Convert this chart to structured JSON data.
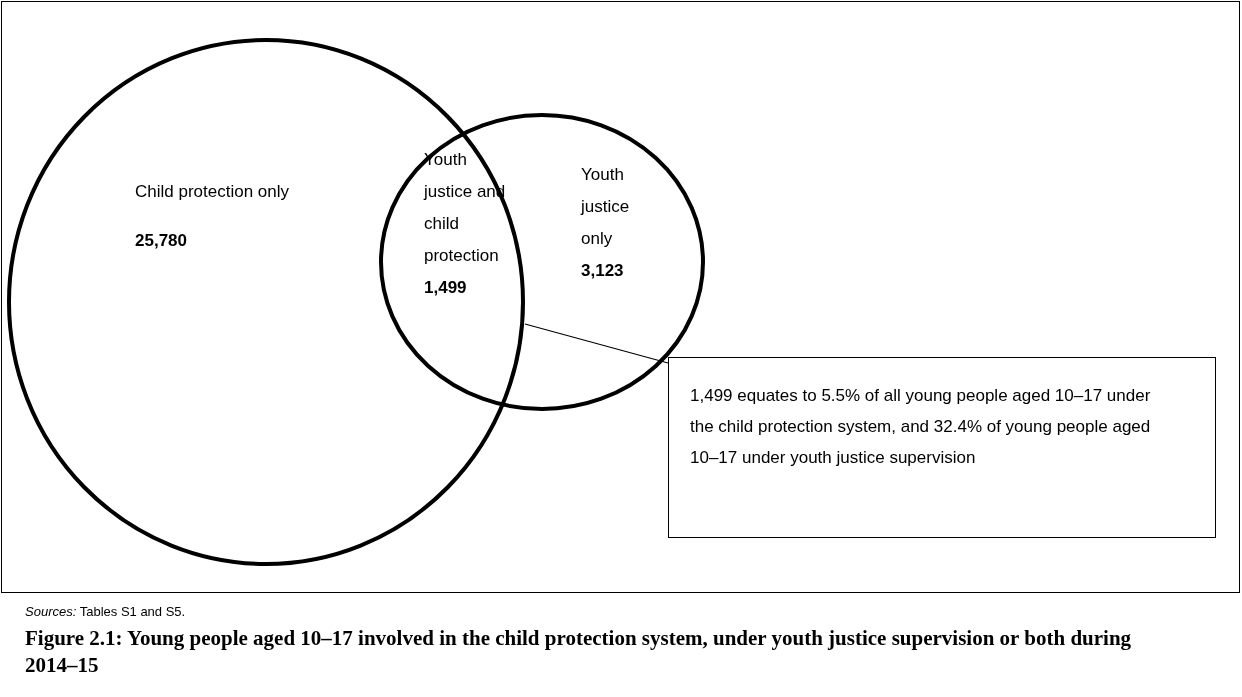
{
  "chart_data": {
    "type": "other",
    "title": "Figure 2.1: Young people aged 10–17 involved in the child protection system, under youth justice supervision or both during 2014–15",
    "categories": [
      "Child protection only",
      "Youth justice and child protection",
      "Youth justice only"
    ],
    "values": [
      25780,
      1499,
      3123
    ],
    "value_labels": [
      "25,780",
      "1,499",
      "3,123"
    ],
    "annotations": [
      "1,499 equates to 5.5% of all young people aged 10–17 under the child protection system, and 32.4% of young people aged 10–17 under youth justice supervision",
      "Sources: Tables S1 and S5."
    ]
  }
}
